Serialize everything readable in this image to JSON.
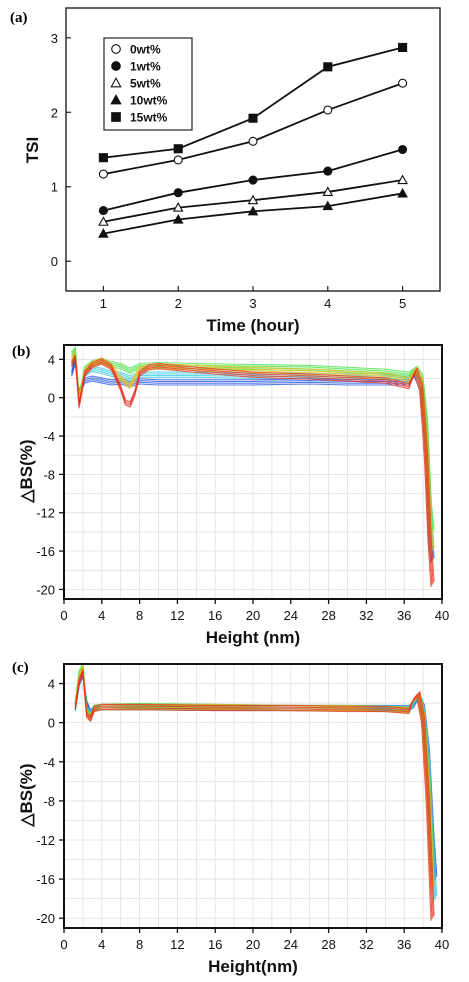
{
  "chart_data": [
    {
      "panel": "(a)",
      "type": "line",
      "xlabel": "Time (hour)",
      "ylabel": "TSI",
      "x": [
        1,
        2,
        3,
        4,
        5
      ],
      "xlim": [
        0.5,
        5.5
      ],
      "ylim": [
        -0.4,
        3.4
      ],
      "xticks": [
        "1",
        "2",
        "3",
        "4",
        "5"
      ],
      "yticks": [
        "0",
        "1",
        "2",
        "3"
      ],
      "legend_position": "top-left",
      "series": [
        {
          "name": "0wt%",
          "marker": "circle-open",
          "values": [
            1.17,
            1.36,
            1.61,
            2.03,
            2.39
          ]
        },
        {
          "name": "1wt%",
          "marker": "circle-filled",
          "values": [
            0.68,
            0.92,
            1.09,
            1.21,
            1.5
          ]
        },
        {
          "name": "5wt%",
          "marker": "triangle-open",
          "values": [
            0.53,
            0.72,
            0.82,
            0.93,
            1.09
          ]
        },
        {
          "name": "10wt%",
          "marker": "triangle-filled",
          "values": [
            0.37,
            0.56,
            0.67,
            0.74,
            0.91
          ]
        },
        {
          "name": "15wt%",
          "marker": "square-filled",
          "values": [
            1.39,
            1.51,
            1.92,
            2.61,
            2.87
          ]
        }
      ]
    },
    {
      "panel": "(b)",
      "type": "line",
      "xlabel": "Height (nm)",
      "ylabel": "△BS(%)",
      "xlim": [
        0,
        40
      ],
      "ylim": [
        -21,
        5.5
      ],
      "xticks": [
        "0",
        "4",
        "8",
        "12",
        "16",
        "20",
        "24",
        "28",
        "32",
        "36",
        "40"
      ],
      "yticks": [
        "4",
        "0",
        "-4",
        "-8",
        "-12",
        "-16",
        "-20"
      ],
      "grid": true,
      "series": [
        {
          "color": "#2050e0",
          "x": [
            0.8,
            1.2,
            1.6,
            2.2,
            3,
            4,
            5,
            6,
            7,
            8,
            10,
            14,
            20,
            26,
            30,
            34,
            36.5,
            37.2,
            37.8,
            38.3,
            38.7,
            39.0
          ],
          "values": [
            2.5,
            3.8,
            0.5,
            1.8,
            2.0,
            1.8,
            1.6,
            1.7,
            1.4,
            1.7,
            1.6,
            1.6,
            1.6,
            1.7,
            1.6,
            1.6,
            1.6,
            2.5,
            1.2,
            -4,
            -14,
            -17
          ]
        },
        {
          "color": "#30c8e0",
          "x": [
            0.8,
            1.2,
            1.6,
            2.2,
            3,
            4,
            5,
            6,
            7,
            8,
            10,
            14,
            20,
            26,
            30,
            34,
            36.5,
            37.2,
            37.8,
            38.3,
            38.7,
            39.0
          ],
          "values": [
            3.5,
            4.5,
            0.2,
            2.5,
            3.0,
            2.8,
            2.5,
            2.4,
            2.0,
            2.4,
            2.4,
            2.4,
            2.3,
            2.3,
            2.2,
            2.2,
            1.9,
            2.8,
            1.8,
            -3,
            -12,
            -16
          ]
        },
        {
          "color": "#40e040",
          "x": [
            0.8,
            1.2,
            1.6,
            2.2,
            3,
            4,
            5,
            6,
            7,
            8,
            10,
            14,
            20,
            26,
            30,
            34,
            36.5,
            37.2,
            37.8,
            38.3,
            38.7,
            39.0
          ],
          "values": [
            4.5,
            5.0,
            0.0,
            3.0,
            3.6,
            3.8,
            3.5,
            3.3,
            2.8,
            3.3,
            3.4,
            3.3,
            3.2,
            3.1,
            2.9,
            2.7,
            2.4,
            3.0,
            2.2,
            -2.5,
            -11,
            -14
          ]
        },
        {
          "color": "#e8c020",
          "x": [
            0.8,
            1.2,
            1.6,
            2.2,
            3,
            4,
            5,
            6,
            7,
            8,
            10,
            14,
            20,
            26,
            30,
            34,
            36.5,
            37.2,
            37.8,
            38.3,
            38.7,
            39.0
          ],
          "values": [
            4.0,
            4.6,
            -0.3,
            2.8,
            3.5,
            3.9,
            3.3,
            2.0,
            1.2,
            3.0,
            3.3,
            3.1,
            2.9,
            2.7,
            2.5,
            2.3,
            1.8,
            2.9,
            1.8,
            -4,
            -13,
            -16
          ]
        },
        {
          "color": "#e83020",
          "x": [
            0.8,
            1.2,
            1.6,
            2.2,
            3,
            4,
            5,
            6,
            6.5,
            7,
            7.5,
            8,
            9,
            10,
            14,
            20,
            26,
            30,
            34,
            36.5,
            37.2,
            37.8,
            38.3,
            38.7,
            39.0
          ],
          "values": [
            3.5,
            4.2,
            -0.8,
            2.5,
            3.4,
            3.8,
            3.2,
            1.0,
            -0.5,
            -0.7,
            0.5,
            2.5,
            3.2,
            3.3,
            2.9,
            2.4,
            2.2,
            2.0,
            1.8,
            1.2,
            2.8,
            1.0,
            -6,
            -15,
            -19.5
          ]
        }
      ]
    },
    {
      "panel": "(c)",
      "type": "line",
      "xlabel": "Height(nm)",
      "ylabel": "△BS(%)",
      "xlim": [
        0,
        40
      ],
      "ylim": [
        -21,
        6
      ],
      "xticks": [
        "0",
        "4",
        "8",
        "12",
        "16",
        "20",
        "24",
        "28",
        "32",
        "36",
        "40"
      ],
      "yticks": [
        "4",
        "0",
        "-4",
        "-8",
        "-12",
        "-16",
        "-20"
      ],
      "grid": true,
      "series": [
        {
          "color": "#2050e0",
          "x": [
            1.2,
            1.6,
            2.0,
            2.4,
            2.8,
            3.2,
            4,
            8,
            16,
            24,
            30,
            34,
            36.5,
            37.0,
            37.5,
            38.0,
            38.5,
            39.0,
            39.3
          ],
          "values": [
            1.5,
            4.0,
            5.0,
            2.0,
            1.0,
            1.5,
            1.6,
            1.6,
            1.5,
            1.5,
            1.5,
            1.5,
            1.5,
            1.8,
            2.5,
            1.5,
            -3,
            -12,
            -16
          ]
        },
        {
          "color": "#30c8e0",
          "x": [
            1.2,
            1.6,
            2.0,
            2.4,
            2.8,
            3.2,
            4,
            8,
            16,
            24,
            30,
            34,
            36.5,
            37.0,
            37.5,
            38.0,
            38.5,
            39.0,
            39.3
          ],
          "values": [
            1.8,
            4.5,
            5.5,
            1.5,
            0.8,
            1.5,
            1.6,
            1.6,
            1.6,
            1.5,
            1.5,
            1.5,
            1.4,
            2.0,
            2.7,
            1.2,
            -4,
            -14,
            -18
          ]
        },
        {
          "color": "#40e040",
          "x": [
            1.2,
            1.6,
            2.0,
            2.4,
            2.8,
            3.2,
            4,
            8,
            16,
            24,
            30,
            34,
            36.5,
            37.0,
            37.5,
            38.0,
            38.5,
            39.0
          ],
          "values": [
            2.0,
            5.0,
            5.8,
            1.2,
            0.6,
            1.5,
            1.6,
            1.7,
            1.6,
            1.5,
            1.5,
            1.4,
            1.3,
            2.2,
            2.8,
            0.8,
            -5,
            -15
          ]
        },
        {
          "color": "#e8c020",
          "x": [
            1.2,
            1.6,
            2.0,
            2.4,
            2.8,
            3.2,
            4,
            8,
            16,
            24,
            30,
            34,
            36.5,
            37.0,
            37.5,
            38.0,
            38.5,
            39.0
          ],
          "values": [
            1.8,
            4.6,
            5.6,
            1.0,
            0.5,
            1.4,
            1.6,
            1.6,
            1.6,
            1.5,
            1.5,
            1.4,
            1.3,
            2.3,
            2.8,
            0.5,
            -6,
            -17
          ]
        },
        {
          "color": "#e83020",
          "x": [
            1.2,
            1.6,
            2.0,
            2.4,
            2.8,
            3.2,
            4,
            8,
            16,
            24,
            30,
            34,
            36.5,
            37.0,
            37.5,
            38.0,
            38.5,
            39.0
          ],
          "values": [
            1.5,
            4.2,
            5.2,
            0.8,
            0.4,
            1.4,
            1.6,
            1.6,
            1.5,
            1.5,
            1.4,
            1.4,
            1.2,
            2.4,
            2.9,
            0.2,
            -8,
            -20
          ]
        }
      ]
    }
  ]
}
